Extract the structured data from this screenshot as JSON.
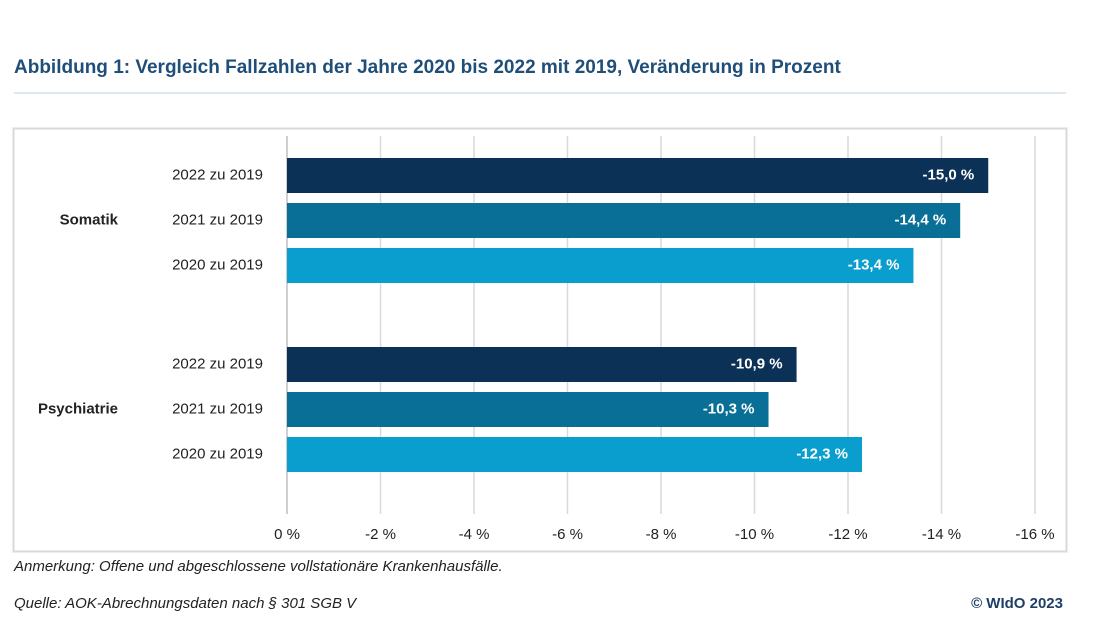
{
  "chart_data": {
    "type": "bar",
    "orientation": "horizontal",
    "title": "Abbildung 1: Vergleich Fallzahlen der Jahre 2020 bis 2022 mit 2019, Veränderung in Prozent",
    "categories": [
      "Somatik",
      "Psychiatrie"
    ],
    "series": [
      {
        "name": "2022 zu 2019",
        "color": "#0b3157",
        "values": [
          -15.0,
          -10.9
        ],
        "value_labels": [
          "-15,0 %",
          "-10,9 %"
        ]
      },
      {
        "name": "2021 zu 2019",
        "color": "#0a6f96",
        "values": [
          -14.4,
          -10.3
        ],
        "value_labels": [
          "-14,4 %",
          "-10,3 %"
        ]
      },
      {
        "name": "2020 zu 2019",
        "color": "#0a9ecf",
        "values": [
          -13.4,
          -12.3
        ],
        "value_labels": [
          "-13,4 %",
          "-12,3 %"
        ]
      }
    ],
    "xlim": [
      0,
      -16
    ],
    "xticks": [
      {
        "value": 0,
        "label": "0 %"
      },
      {
        "value": -2,
        "label": "-2 %"
      },
      {
        "value": -4,
        "label": "-4 %"
      },
      {
        "value": -6,
        "label": "-6 %"
      },
      {
        "value": -8,
        "label": "-8 %"
      },
      {
        "value": -10,
        "label": "-10 %"
      },
      {
        "value": -12,
        "label": "-12 %"
      },
      {
        "value": -14,
        "label": "-14 %"
      },
      {
        "value": -16,
        "label": "-16 %"
      }
    ],
    "grid": true,
    "note": "Anmerkung: Offene und abgeschlossene vollstationäre Krankenhausfälle.",
    "source": "Quelle: AOK-Abrechnungsdaten nach § 301 SGB V",
    "copyright": "© WIdO 2023"
  }
}
